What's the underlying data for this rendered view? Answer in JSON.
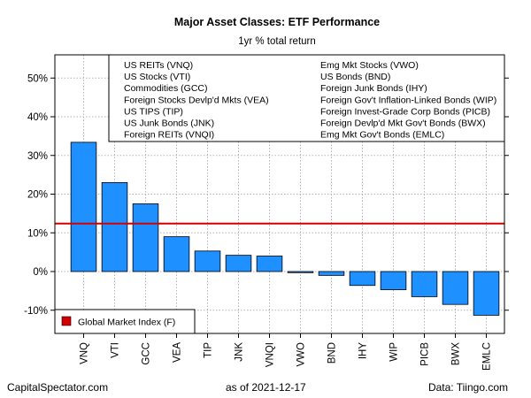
{
  "chart_data": {
    "type": "bar",
    "title": "Major Asset Classes: ETF Performance",
    "subtitle": "1yr % total return",
    "xlabel": "",
    "ylabel": "",
    "ylim": [
      -16,
      56
    ],
    "yticks": [
      -10,
      0,
      10,
      20,
      30,
      40,
      50
    ],
    "ytick_labels": [
      "-10%",
      "0%",
      "10%",
      "20%",
      "30%",
      "40%",
      "50%"
    ],
    "categories": [
      "VNQ",
      "VTI",
      "GCC",
      "VEA",
      "TIP",
      "JNK",
      "VNQI",
      "VWO",
      "BND",
      "IHY",
      "WIP",
      "PICB",
      "BWX",
      "EMLC"
    ],
    "values": [
      33.4,
      23.0,
      17.5,
      9.0,
      5.3,
      4.2,
      4.0,
      -0.3,
      -1.0,
      -3.6,
      -4.7,
      -6.5,
      -8.5,
      -11.3
    ],
    "bar_color": "#1e90ff",
    "grid": true,
    "reference_line": {
      "value": 12.4,
      "color": "#d40000",
      "label": "Global Market Index (F)"
    },
    "legend_left": [
      "US REITs (VNQ)",
      "US Stocks (VTI)",
      "Commodities (GCC)",
      "Foreign Stocks Devlp'd Mkts (VEA)",
      "US TIPS (TIP)",
      "US Junk Bonds (JNK)",
      "Foreign REITs (VNQI)"
    ],
    "legend_right": [
      "Emg Mkt Stocks (VWO)",
      "US Bonds (BND)",
      "Foreign Junk Bonds (IHY)",
      "Foreign Gov't Inflation-Linked Bonds (WIP)",
      "Foreign Invest-Grade Corp Bonds (PICB)",
      "Foreign Devlp'd Mkt Gov't Bonds (BWX)",
      "Emg Mkt Gov't Bonds (EMLC)"
    ],
    "legend_placement": "top-right"
  },
  "footer": {
    "left": "CapitalSpectator.com",
    "center": "as of   2021-12-17",
    "right": "Data: Tiingo.com"
  }
}
